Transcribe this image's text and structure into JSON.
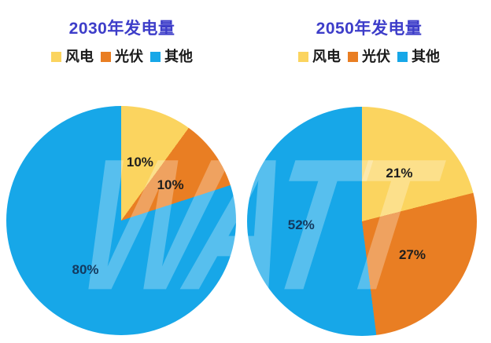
{
  "watermark": "WATT",
  "title_color": "#3D3DC9",
  "legend_text_color": "#1A1A1A",
  "chart_data": [
    {
      "type": "pie",
      "title": "2030年发电量",
      "legend_position": "top",
      "start_angle_deg": 0,
      "direction": "clockwise",
      "slices": [
        {
          "name": "风电",
          "value": 10,
          "label": "10%",
          "color": "#FBD45F",
          "label_color": "#1E1E1E"
        },
        {
          "name": "光伏",
          "value": 10,
          "label": "10%",
          "color": "#E97E23",
          "label_color": "#1E1E1E"
        },
        {
          "name": "其他",
          "value": 80,
          "label": "80%",
          "color": "#17A7E8",
          "label_color": "#14395E"
        }
      ]
    },
    {
      "type": "pie",
      "title": "2050年发电量",
      "legend_position": "top",
      "start_angle_deg": 0,
      "direction": "clockwise",
      "slices": [
        {
          "name": "风电",
          "value": 21,
          "label": "21%",
          "color": "#FBD45F",
          "label_color": "#1E1E1E"
        },
        {
          "name": "光伏",
          "value": 27,
          "label": "27%",
          "color": "#E97E23",
          "label_color": "#1E1E1E"
        },
        {
          "name": "其他",
          "value": 52,
          "label": "52%",
          "color": "#17A7E8",
          "label_color": "#14395E"
        }
      ]
    }
  ]
}
